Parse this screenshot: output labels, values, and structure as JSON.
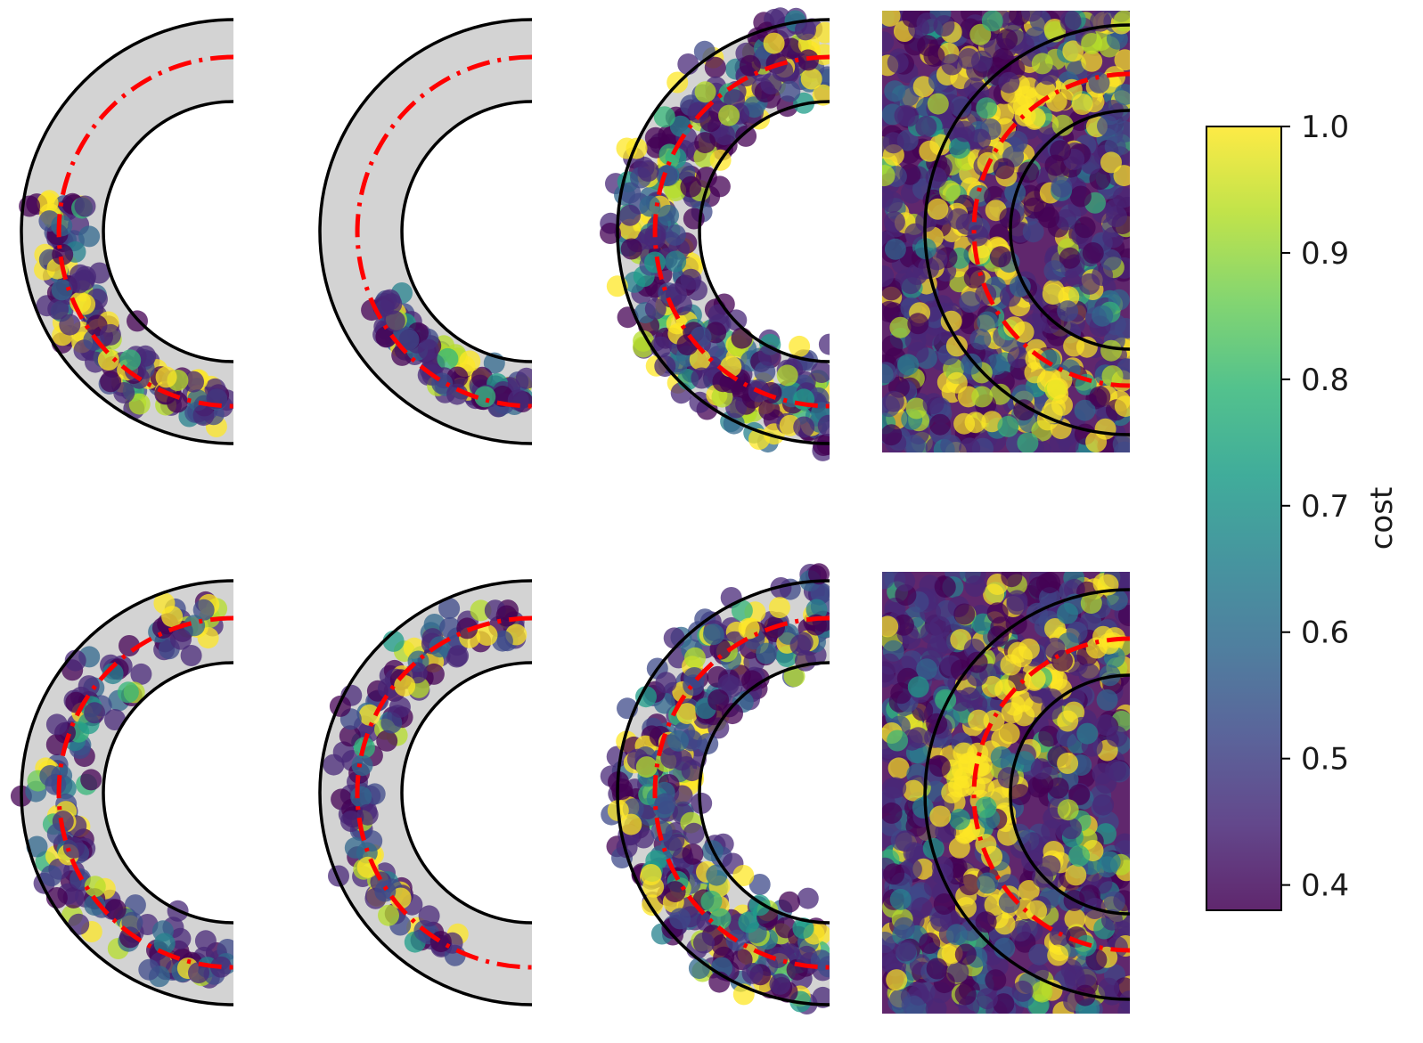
{
  "colors": {
    "viridis": [
      "#440154",
      "#482878",
      "#3e4989",
      "#31688e",
      "#26828e",
      "#1f9e89",
      "#35b779",
      "#6ece58",
      "#b5de2b",
      "#fde725"
    ],
    "track_fill": "#d3d3d3",
    "track_edge": "#000000",
    "centerline": "#ff0000"
  },
  "chart_data": {
    "type": "scatter",
    "layout": "2 rows x 4 columns of panels sharing one colorbar",
    "track": {
      "inner_radius": 1.0,
      "outer_radius": 1.7,
      "centerline_radius": 1.35,
      "shape": "left half annulus",
      "centerline_style": "red dash-dot"
    },
    "colorbar": {
      "label": "cost",
      "range": [
        0.38,
        1.0
      ],
      "ticks": [
        "1.0",
        "0.9",
        "0.8",
        "0.7",
        "0.6",
        "0.5",
        "0.4"
      ],
      "tick_values": [
        1.0,
        0.9,
        0.8,
        0.7,
        0.6,
        0.5,
        0.4
      ],
      "colormap": "viridis"
    },
    "panels": [
      {
        "row": 1,
        "col": 1,
        "view": "track",
        "sample_region": "lower-left sector of track, clustered around centerline",
        "points": 170
      },
      {
        "row": 1,
        "col": 2,
        "view": "track",
        "sample_region": "narrow lower-inner cluster",
        "points": 130
      },
      {
        "row": 1,
        "col": 3,
        "view": "track",
        "sample_region": "entire annulus",
        "points": 420
      },
      {
        "row": 1,
        "col": 4,
        "view": "zoomed-out square",
        "sample_region": "whole domain",
        "points": 850
      },
      {
        "row": 2,
        "col": 1,
        "view": "track",
        "sample_region": "upper and lower-left parts of track",
        "points": 170
      },
      {
        "row": 2,
        "col": 2,
        "view": "track",
        "sample_region": "top edge and inner-lower cluster",
        "points": 140
      },
      {
        "row": 2,
        "col": 3,
        "view": "track",
        "sample_region": "entire annulus",
        "points": 420
      },
      {
        "row": 2,
        "col": 4,
        "view": "zoomed-out square",
        "sample_region": "whole domain",
        "points": 850
      }
    ]
  }
}
